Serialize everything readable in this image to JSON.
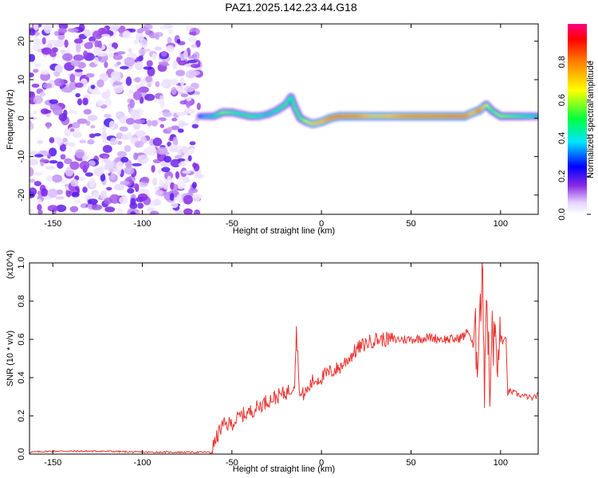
{
  "title": "PAZ1.2025.142.23.44.G18",
  "chart_data": [
    {
      "type": "heatmap",
      "xlabel": "Height of straight line (km)",
      "ylabel": "Frequency (Hz)",
      "xlim": [
        -163,
        121
      ],
      "ylim": [
        -25,
        24.5
      ],
      "xticks": [
        -150,
        -100,
        -50,
        0,
        50,
        100
      ],
      "yticks": [
        -20,
        -10,
        0,
        10,
        20
      ],
      "colorbar": {
        "label": "Normalized spectral amplitude",
        "range": [
          0,
          1
        ],
        "ticks": [
          "0.0",
          "0.2",
          "0.4",
          "0.6",
          "0.8"
        ],
        "tick_values": [
          0,
          0.2,
          0.4,
          0.6,
          0.8
        ],
        "colors": [
          "#ffffff",
          "#e6d6ff",
          "#8a2be2",
          "#0000ff",
          "#00e5ff",
          "#00ff40",
          "#ffff00",
          "#ff8000",
          "#ff0000",
          "#ff0080"
        ]
      },
      "noise_region": {
        "x": [
          -163,
          -68
        ],
        "frequency": [
          -25,
          24.5
        ],
        "amplitude": "low (0.0-0.15)"
      },
      "ridge": {
        "x": [
          -68,
          -60,
          -55,
          -50,
          -45,
          -40,
          -35,
          -30,
          -25,
          -20,
          -17,
          -15,
          -12,
          -8,
          -5,
          0,
          5,
          10,
          20,
          30,
          50,
          80,
          85,
          88,
          92,
          95,
          100,
          110,
          121
        ],
        "frequency": [
          0.5,
          0.5,
          1.5,
          1.5,
          1,
          0.5,
          0.5,
          1,
          2,
          3.5,
          5.5,
          3,
          0,
          -1,
          -1.5,
          -1,
          0,
          0.5,
          0.5,
          0.5,
          0.5,
          0.5,
          1.5,
          2,
          3.5,
          2,
          0.5,
          0.5,
          0.5
        ],
        "amplitude": [
          0.3,
          0.4,
          0.55,
          0.5,
          0.45,
          0.5,
          0.45,
          0.4,
          0.45,
          0.5,
          0.45,
          0.5,
          0.5,
          0.6,
          0.7,
          0.75,
          0.85,
          0.9,
          0.85,
          0.7,
          0.85,
          0.9,
          0.7,
          0.9,
          0.6,
          0.5,
          0.55,
          0.5,
          0.4
        ]
      }
    },
    {
      "type": "line",
      "xlabel": "Height of straight line (km)",
      "ylabel": "SNR (10 * v/v)",
      "scale_label": "(x10^4)",
      "xlim": [
        -163,
        121
      ],
      "ylim": [
        0,
        1.0
      ],
      "xticks": [
        -150,
        -100,
        -50,
        0,
        50,
        100
      ],
      "yticks": [
        "0.0",
        "0.2",
        "0.4",
        "0.6",
        "0.8",
        "1.0"
      ],
      "ytick_values": [
        0,
        0.2,
        0.4,
        0.6,
        0.8,
        1.0
      ],
      "series": [
        {
          "color": "#e8322f",
          "x": [
            -163,
            -150,
            -120,
            -100,
            -80,
            -70,
            -62,
            -60,
            -57,
            -55,
            -50,
            -45,
            -40,
            -35,
            -30,
            -25,
            -20,
            -17,
            -15,
            -14,
            -12,
            -8,
            -5,
            0,
            5,
            10,
            15,
            20,
            25,
            30,
            40,
            50,
            60,
            70,
            75,
            80,
            82,
            85,
            86,
            87,
            88,
            89,
            90,
            91,
            92,
            93,
            94,
            95,
            96,
            97,
            98,
            99,
            100,
            103,
            104,
            105,
            110,
            115,
            118,
            121
          ],
          "y": [
            0.01,
            0.015,
            0.015,
            0.01,
            0.01,
            0.01,
            0.01,
            0.05,
            0.12,
            0.15,
            0.16,
            0.2,
            0.22,
            0.25,
            0.28,
            0.3,
            0.32,
            0.34,
            0.38,
            0.65,
            0.3,
            0.33,
            0.38,
            0.4,
            0.43,
            0.45,
            0.5,
            0.55,
            0.58,
            0.6,
            0.6,
            0.6,
            0.61,
            0.6,
            0.6,
            0.62,
            0.65,
            0.55,
            0.62,
            0.48,
            0.72,
            0.8,
            1.0,
            0.35,
            0.85,
            0.65,
            0.25,
            0.7,
            0.5,
            0.72,
            0.35,
            0.6,
            0.58,
            0.6,
            0.32,
            0.33,
            0.31,
            0.3,
            0.29,
            0.31
          ]
        }
      ]
    }
  ]
}
